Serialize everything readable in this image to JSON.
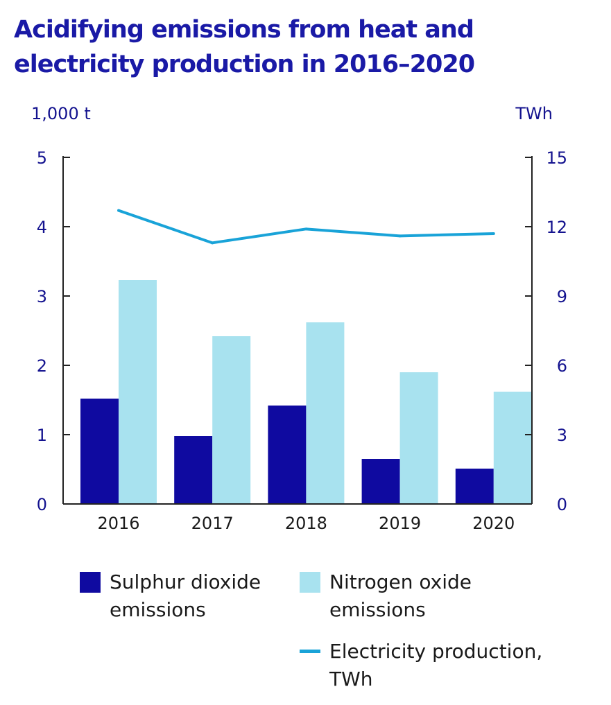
{
  "title": {
    "line1": "Acidifying emissions from heat and",
    "line2": "electricity production in 2016–2020"
  },
  "chart_data": {
    "type": "bar",
    "categories": [
      "2016",
      "2017",
      "2018",
      "2019",
      "2020"
    ],
    "series": [
      {
        "name": "Sulphur dioxide emissions",
        "type": "bar",
        "axis": "left",
        "color": "#0f0aa0",
        "values": [
          1.52,
          0.98,
          1.42,
          0.65,
          0.51
        ]
      },
      {
        "name": "Nitrogen oxide emissions",
        "type": "bar",
        "axis": "left",
        "color": "#a8e2ef",
        "values": [
          3.23,
          2.42,
          2.62,
          1.9,
          1.62
        ]
      },
      {
        "name": "Electricity production, TWh",
        "type": "line",
        "axis": "right",
        "color": "#19a3d8",
        "values": [
          12.7,
          11.3,
          11.9,
          11.6,
          11.7
        ]
      }
    ],
    "y_left": {
      "label": "1,000 t",
      "ylim": [
        0,
        5
      ],
      "ticks": [
        "0",
        "1",
        "2",
        "3",
        "4",
        "5"
      ]
    },
    "y_right": {
      "label": "TWh",
      "ylim": [
        0,
        15
      ],
      "ticks": [
        "0",
        "3",
        "6",
        "9",
        "12",
        "15"
      ]
    },
    "grid": false,
    "legend_position": "bottom"
  },
  "legend": {
    "so2": [
      "Sulphur dioxide",
      "emissions"
    ],
    "nox": [
      "Nitrogen oxide",
      "emissions"
    ],
    "elec": [
      "Electricity production,",
      "TWh"
    ]
  }
}
